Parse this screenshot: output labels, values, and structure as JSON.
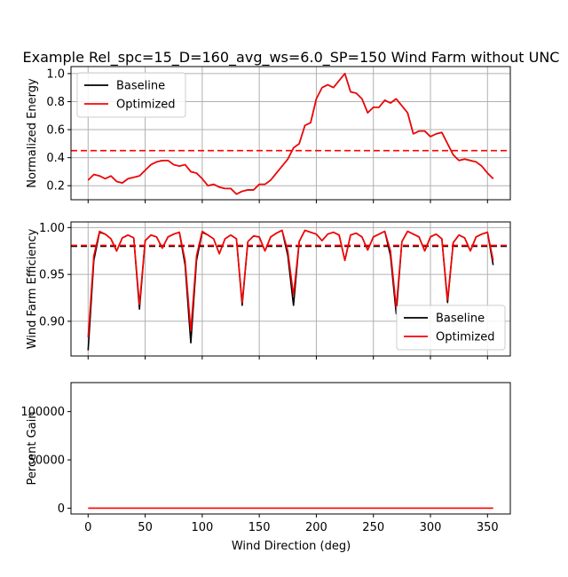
{
  "chart_data": {
    "type": "line",
    "title": "Example Rel_spc=15_D=160_avg_ws=6.0_SP=150 Wind Farm without UNC",
    "xlabel": "Wind Direction (deg)",
    "xlim": [
      -15,
      370
    ],
    "x_ticks": [
      0,
      50,
      100,
      150,
      200,
      250,
      300,
      350
    ],
    "x": [
      0,
      5,
      10,
      15,
      20,
      25,
      30,
      35,
      40,
      45,
      50,
      55,
      60,
      65,
      70,
      75,
      80,
      85,
      90,
      95,
      100,
      105,
      110,
      115,
      120,
      125,
      130,
      135,
      140,
      145,
      150,
      155,
      160,
      165,
      170,
      175,
      180,
      185,
      190,
      195,
      200,
      205,
      210,
      215,
      220,
      225,
      230,
      235,
      240,
      245,
      250,
      255,
      260,
      265,
      270,
      275,
      280,
      285,
      290,
      295,
      300,
      305,
      310,
      315,
      320,
      325,
      330,
      335,
      340,
      345,
      350,
      355
    ],
    "panels": [
      {
        "ylabel": "Normalized Energy",
        "ylim": [
          0.1,
          1.05
        ],
        "y_ticks": [
          0.2,
          0.4,
          0.6,
          0.8,
          1.0
        ],
        "y_tick_labels": [
          "0.2",
          "0.4",
          "0.6",
          "0.8",
          "1.0"
        ],
        "grid": true,
        "legend": "top-left",
        "series": [
          {
            "name": "Baseline",
            "color": "#000000",
            "style": "solid",
            "values": [
              0.24,
              0.28,
              0.27,
              0.25,
              0.27,
              0.23,
              0.22,
              0.25,
              0.26,
              0.27,
              0.31,
              0.35,
              0.37,
              0.38,
              0.38,
              0.35,
              0.34,
              0.35,
              0.3,
              0.29,
              0.25,
              0.2,
              0.21,
              0.19,
              0.18,
              0.18,
              0.14,
              0.16,
              0.17,
              0.17,
              0.21,
              0.21,
              0.24,
              0.29,
              0.34,
              0.39,
              0.47,
              0.5,
              0.63,
              0.65,
              0.82,
              0.9,
              0.92,
              0.9,
              0.95,
              1.0,
              0.87,
              0.86,
              0.82,
              0.72,
              0.76,
              0.76,
              0.81,
              0.79,
              0.82,
              0.77,
              0.72,
              0.57,
              0.59,
              0.59,
              0.55,
              0.57,
              0.58,
              0.5,
              0.42,
              0.38,
              0.39,
              0.38,
              0.37,
              0.34,
              0.29,
              0.25
            ]
          },
          {
            "name": "Optimized",
            "color": "#ff0000",
            "style": "solid",
            "values": [
              0.24,
              0.28,
              0.27,
              0.25,
              0.27,
              0.23,
              0.22,
              0.25,
              0.26,
              0.27,
              0.31,
              0.35,
              0.37,
              0.38,
              0.38,
              0.35,
              0.34,
              0.35,
              0.3,
              0.29,
              0.25,
              0.2,
              0.21,
              0.19,
              0.18,
              0.18,
              0.14,
              0.16,
              0.17,
              0.17,
              0.21,
              0.21,
              0.24,
              0.29,
              0.34,
              0.39,
              0.47,
              0.5,
              0.63,
              0.65,
              0.82,
              0.9,
              0.92,
              0.9,
              0.95,
              1.0,
              0.87,
              0.86,
              0.82,
              0.72,
              0.76,
              0.76,
              0.81,
              0.79,
              0.82,
              0.77,
              0.72,
              0.57,
              0.59,
              0.59,
              0.55,
              0.57,
              0.58,
              0.5,
              0.42,
              0.38,
              0.39,
              0.38,
              0.37,
              0.34,
              0.29,
              0.25
            ]
          }
        ],
        "hlines": [
          {
            "value": 0.45,
            "color": "#ff0000",
            "style": "dashed"
          }
        ]
      },
      {
        "ylabel": "Wind Farm Efficiency",
        "ylim": [
          0.863,
          1.006
        ],
        "y_ticks": [
          0.9,
          0.95,
          1.0
        ],
        "y_tick_labels": [
          "0.90",
          "0.95",
          "1.00"
        ],
        "grid": true,
        "legend": "lower-right",
        "series": [
          {
            "name": "Baseline",
            "color": "#000000",
            "style": "solid",
            "values": [
              0.869,
              0.965,
              0.995,
              0.993,
              0.988,
              0.975,
              0.989,
              0.992,
              0.989,
              0.913,
              0.986,
              0.992,
              0.99,
              0.978,
              0.99,
              0.993,
              0.995,
              0.96,
              0.877,
              0.965,
              0.995,
              0.992,
              0.988,
              0.972,
              0.988,
              0.992,
              0.988,
              0.917,
              0.985,
              0.991,
              0.99,
              0.975,
              0.99,
              0.994,
              0.997,
              0.97,
              0.917,
              0.985,
              0.997,
              0.995,
              0.993,
              0.986,
              0.993,
              0.995,
              0.992,
              0.965,
              0.992,
              0.994,
              0.99,
              0.976,
              0.99,
              0.993,
              0.996,
              0.97,
              0.908,
              0.985,
              0.996,
              0.993,
              0.99,
              0.975,
              0.99,
              0.993,
              0.988,
              0.92,
              0.984,
              0.992,
              0.989,
              0.975,
              0.99,
              0.993,
              0.995,
              0.96
            ]
          },
          {
            "name": "Optimized",
            "color": "#ff0000",
            "style": "solid",
            "values": [
              0.883,
              0.97,
              0.996,
              0.993,
              0.988,
              0.975,
              0.989,
              0.992,
              0.989,
              0.918,
              0.986,
              0.992,
              0.99,
              0.978,
              0.99,
              0.993,
              0.995,
              0.965,
              0.89,
              0.97,
              0.996,
              0.992,
              0.988,
              0.972,
              0.988,
              0.992,
              0.988,
              0.92,
              0.985,
              0.991,
              0.99,
              0.975,
              0.99,
              0.994,
              0.997,
              0.975,
              0.928,
              0.985,
              0.997,
              0.995,
              0.993,
              0.986,
              0.993,
              0.995,
              0.992,
              0.965,
              0.992,
              0.994,
              0.99,
              0.976,
              0.99,
              0.993,
              0.996,
              0.975,
              0.915,
              0.985,
              0.996,
              0.993,
              0.99,
              0.975,
              0.99,
              0.993,
              0.988,
              0.923,
              0.984,
              0.992,
              0.989,
              0.975,
              0.99,
              0.993,
              0.995,
              0.965
            ]
          }
        ],
        "hlines": [
          {
            "value": 0.98,
            "color": "#000000",
            "style": "dashed"
          },
          {
            "value": 0.981,
            "color": "#ff0000",
            "style": "dashed"
          }
        ]
      },
      {
        "ylabel": "Percent Gain",
        "ylim": [
          -6000,
          130000
        ],
        "y_ticks": [
          0,
          50000,
          100000
        ],
        "y_tick_labels": [
          "0",
          "50000",
          "100000"
        ],
        "grid": false,
        "legend": "none",
        "series": [
          {
            "name": "Optimized",
            "color": "#ff0000",
            "style": "solid",
            "flat_value": 0
          }
        ],
        "hlines": []
      }
    ]
  }
}
